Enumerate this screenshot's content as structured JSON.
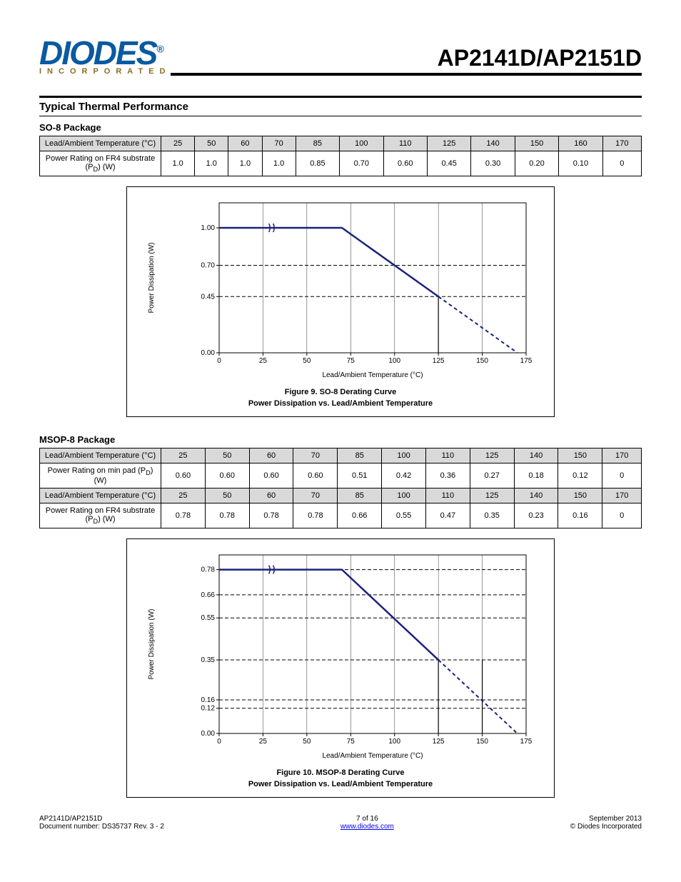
{
  "header": {
    "logo_main": "DIODES",
    "logo_sub": "INCORPORATED",
    "part_number": "AP2141D/AP2151D"
  },
  "section1": {
    "title": "Typical Thermal Performance",
    "subtitle": "SO-8 Package",
    "table": {
      "columns": [
        "Lead/Ambient Temperature (°C)",
        "25",
        "50",
        "60",
        "70",
        "85",
        "100",
        "110",
        "125",
        "140",
        "150",
        "160",
        "170"
      ],
      "rows": [
        [
          "Power Rating on FR4 substrate (P<sub>D</sub>) (W)",
          "1.0",
          "1.0",
          "1.0",
          "1.0",
          "0.85",
          "0.70",
          "0.60",
          "0.45",
          "0.30",
          "0.20",
          "0.10",
          "0"
        ]
      ]
    },
    "chart": {
      "type": "line",
      "title_line1": "Figure 9. SO-8 Derating Curve",
      "title_line2": "Power Dissipation vs. Lead/Ambient Temperature",
      "y_label": "Power Dissipation (W)",
      "y_ticks": [
        0,
        0.45,
        0.7,
        1.0
      ],
      "y_max": 1.2,
      "x_label": "Lead/Ambient Temperature (°C)",
      "x_ticks": [
        0,
        25,
        50,
        75,
        100,
        125,
        150,
        175
      ],
      "x_max": 175,
      "grid_color": "#000000",
      "bg_color": "#ffffff",
      "series_color": "#1a237e",
      "solid_points": [
        [
          0,
          1.0
        ],
        [
          25,
          1.0
        ],
        [
          70,
          1.0
        ],
        [
          125,
          0.45
        ]
      ],
      "dashed_points": [
        [
          125,
          0.45
        ],
        [
          170,
          0
        ]
      ],
      "h_guides": [
        0.7,
        0.45
      ],
      "v_guide": 125,
      "break_x": 30
    }
  },
  "section2": {
    "subtitle": "MSOP-8 Package",
    "table": {
      "columns1": [
        "Lead/Ambient Temperature (°C)",
        "25",
        "50",
        "60",
        "70",
        "85",
        "100",
        "110",
        "125",
        "140",
        "150",
        "170"
      ],
      "row1": [
        "Power Rating on min pad (P<sub>D</sub>) (W)",
        "0.60",
        "0.60",
        "0.60",
        "0.60",
        "0.51",
        "0.42",
        "0.36",
        "0.27",
        "0.18",
        "0.12",
        "0"
      ],
      "columns2": [
        "Lead/Ambient Temperature (°C)",
        "25",
        "50",
        "60",
        "70",
        "85",
        "100",
        "110",
        "125",
        "140",
        "150",
        "170"
      ],
      "row2": [
        "Power Rating on FR4 substrate (P<sub>D</sub>) (W)",
        "0.78",
        "0.78",
        "0.78",
        "0.78",
        "0.66",
        "0.55",
        "0.47",
        "0.35",
        "0.23",
        "0.16",
        "0"
      ]
    },
    "chart": {
      "type": "line",
      "title_line1": "Figure 10. MSOP-8 Derating Curve",
      "title_line2": "Power Dissipation vs. Lead/Ambient Temperature",
      "y_label": "Power Dissipation (W)",
      "y_ticks": [
        0,
        0.12,
        0.16,
        0.35,
        0.55,
        0.66,
        0.78
      ],
      "y_max": 0.85,
      "x_label": "Lead/Ambient Temperature (°C)",
      "x_ticks": [
        0,
        25,
        50,
        75,
        100,
        125,
        150,
        175
      ],
      "x_max": 175,
      "grid_color": "#000000",
      "bg_color": "#ffffff",
      "series_color": "#1a237e",
      "solid_points": [
        [
          0,
          0.78
        ],
        [
          25,
          0.78
        ],
        [
          70,
          0.78
        ],
        [
          125,
          0.35
        ]
      ],
      "dashed_points": [
        [
          125,
          0.35
        ],
        [
          170,
          0
        ]
      ],
      "h_guides": [
        0.78,
        0.66,
        0.55,
        0.35,
        0.16,
        0.12
      ],
      "v_guides": [
        125,
        150
      ],
      "break_x": 30
    }
  },
  "footer": {
    "left1": "AP2141D/AP2151D",
    "left2": "Document number: DS35737 Rev. 3 - 2",
    "center_page": "7 of 16",
    "center_url": "www.diodes.com",
    "right1": "September 2013",
    "right2": "© Diodes Incorporated"
  }
}
